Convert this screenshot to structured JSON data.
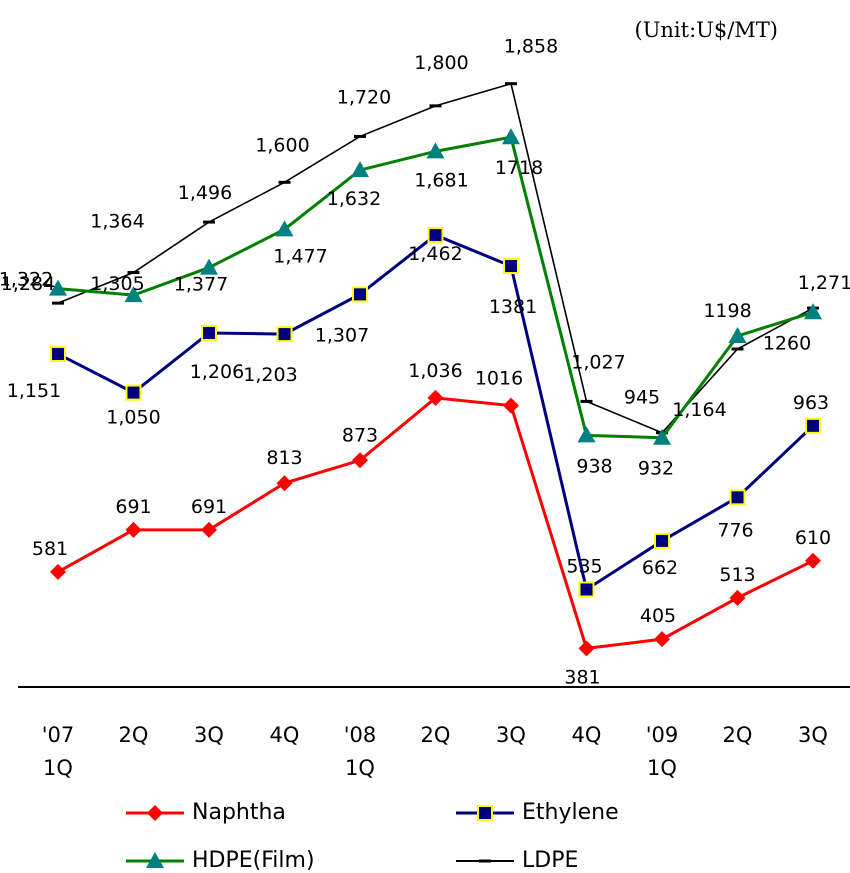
{
  "unit_label": "(Unit:U$/MT)",
  "chart_data": {
    "type": "line",
    "categories": [
      [
        "'07",
        "1Q"
      ],
      [
        "2Q"
      ],
      [
        "3Q"
      ],
      [
        "4Q"
      ],
      [
        "'08",
        "1Q"
      ],
      [
        "2Q"
      ],
      [
        "3Q"
      ],
      [
        "4Q"
      ],
      [
        "'09",
        "1Q"
      ],
      [
        "2Q"
      ],
      [
        "3Q"
      ]
    ],
    "series": [
      {
        "name": "Naphtha",
        "color": "#ff0000",
        "marker": "diamond",
        "values": [
          581,
          691,
          691,
          813,
          873,
          1036,
          1016,
          381,
          405,
          513,
          610
        ],
        "labels": [
          "581",
          "691",
          "691",
          "813",
          "873",
          "1,036",
          "1016",
          "381",
          "405",
          "513",
          "610"
        ]
      },
      {
        "name": "Ethylene",
        "color": "#00007f",
        "marker": "square",
        "values": [
          1151,
          1050,
          1206,
          1203,
          1307,
          1462,
          1381,
          535,
          662,
          776,
          963
        ],
        "labels": [
          "1,151",
          "1,050",
          "1,206",
          "1,203",
          "1,307",
          "1,462",
          "1381",
          "535",
          "662",
          "776",
          "963"
        ]
      },
      {
        "name": "HDPE(Film)",
        "color": "#008000",
        "marker": "triangle",
        "values": [
          1322,
          1305,
          1377,
          1477,
          1632,
          1681,
          1718,
          938,
          932,
          1198,
          1260
        ],
        "labels": [
          "1,322",
          "1,305",
          "1,377",
          "1,477",
          "1,632",
          "1,681",
          "1718",
          "938",
          "932",
          "1198",
          "1260"
        ]
      },
      {
        "name": "LDPE",
        "color": "#000000",
        "marker": "dash",
        "values": [
          1284,
          1364,
          1496,
          1600,
          1720,
          1800,
          1858,
          1027,
          945,
          1164,
          1271
        ],
        "labels": [
          "1,284",
          "1,364",
          "1,496",
          "1,600",
          "1,720",
          "1,800",
          "1,858",
          "1,027",
          "945",
          "1,164",
          "1,271"
        ]
      }
    ],
    "legend_position": "bottom",
    "grid": false
  }
}
